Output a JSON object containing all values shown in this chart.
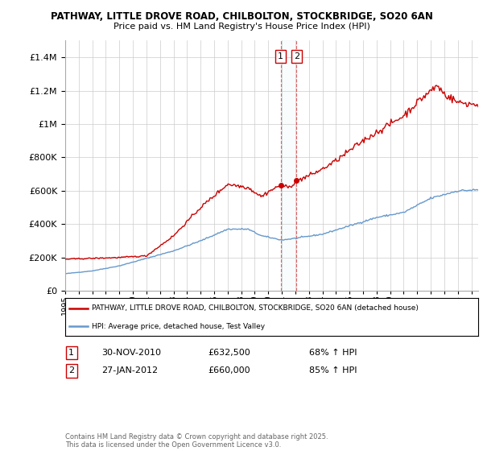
{
  "title1": "PATHWAY, LITTLE DROVE ROAD, CHILBOLTON, STOCKBRIDGE, SO20 6AN",
  "title2": "Price paid vs. HM Land Registry's House Price Index (HPI)",
  "red_label": "PATHWAY, LITTLE DROVE ROAD, CHILBOLTON, STOCKBRIDGE, SO20 6AN (detached house)",
  "blue_label": "HPI: Average price, detached house, Test Valley",
  "purchase1_date": "30-NOV-2010",
  "purchase1_price": 632500,
  "purchase1_hpi": "68% ↑ HPI",
  "purchase2_date": "27-JAN-2012",
  "purchase2_price": 660000,
  "purchase2_hpi": "85% ↑ HPI",
  "footnote": "Contains HM Land Registry data © Crown copyright and database right 2025.\nThis data is licensed under the Open Government Licence v3.0.",
  "red_color": "#cc0000",
  "blue_color": "#6699cc",
  "background_color": "#ffffff",
  "grid_color": "#cccccc",
  "ylim_max": 1500000
}
